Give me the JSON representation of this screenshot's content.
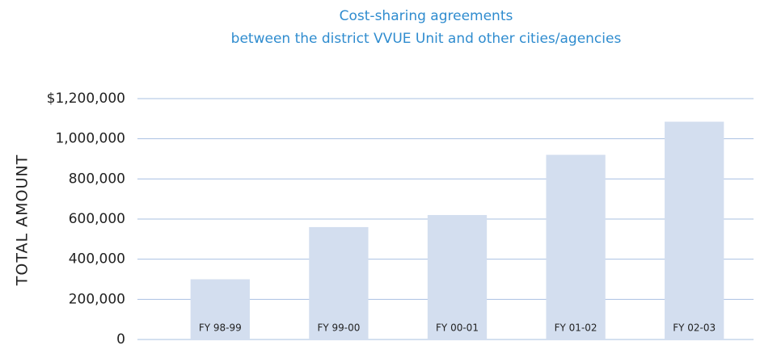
{
  "chart_data": {
    "type": "bar",
    "title": [
      "Cost-sharing agreements",
      "between the district VVUE Unit and other cities/agencies"
    ],
    "ylabel": "TOTAL AMOUNT",
    "categories": [
      "FY 98-99",
      "FY 99-00",
      "FY 00-01",
      "FY 01-02",
      "FY 02-03"
    ],
    "values": [
      300000,
      560000,
      620000,
      920000,
      1085000
    ],
    "color": "#d3deef",
    "ylim": [
      0,
      1200000
    ],
    "yticks": [
      0,
      {
        "value": 200000,
        "label": "200,000"
      },
      {
        "value": 400000,
        "label": "400,000"
      },
      {
        "value": 600000,
        "label": "600,000"
      },
      {
        "value": 800000,
        "label": "800,000"
      },
      {
        "value": 1000000,
        "label": "1,000,000"
      },
      {
        "value": 1200000,
        "label": "$1,200,000"
      }
    ],
    "grid": true
  }
}
